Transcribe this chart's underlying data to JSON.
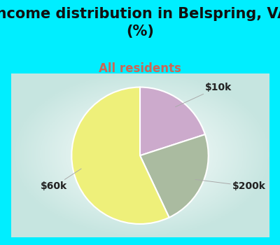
{
  "title": "Income distribution in Belspring, VA\n(%)",
  "subtitle": "All residents",
  "title_fontsize": 15,
  "subtitle_fontsize": 12,
  "title_color": "#111111",
  "subtitle_color": "#cc6655",
  "slices": [
    {
      "label": "$10k",
      "value": 20,
      "color": "#ccaacc"
    },
    {
      "label": "$200k",
      "value": 23,
      "color": "#aabba0"
    },
    {
      "label": "$60k",
      "value": 57,
      "color": "#eef07a"
    }
  ],
  "label_fontsize": 10,
  "label_color": "#222222",
  "bg_color": "#00eeff",
  "chart_bg_outer": "#88ddcc",
  "chart_bg_inner": "#ffffff",
  "startangle": 90,
  "label_positions": {
    "$10k": [
      0.72,
      0.88
    ],
    "$200k": [
      0.93,
      0.32
    ],
    "$60k": [
      0.06,
      0.34
    ]
  }
}
